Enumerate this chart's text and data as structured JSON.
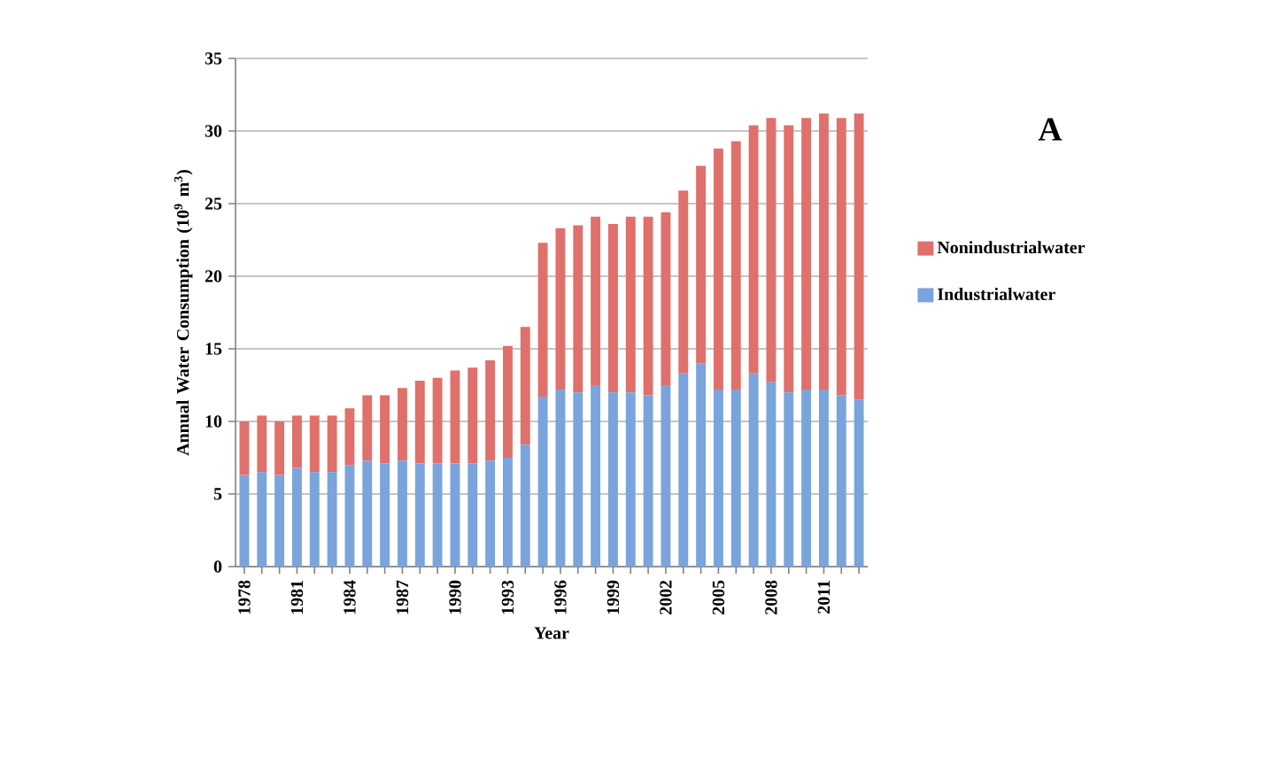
{
  "chart_data": {
    "type": "bar",
    "stacked": true,
    "xlabel": "Year",
    "ylabel": "Annual Water Consumption (10$^{9}$ m$^{3}$)",
    "annotations": [
      "A"
    ],
    "categories": [
      "1978",
      null,
      null,
      "1981",
      null,
      null,
      "1984",
      null,
      null,
      "1987",
      null,
      null,
      "1990",
      null,
      null,
      "1993",
      null,
      null,
      "1996",
      null,
      null,
      "1999",
      null,
      null,
      "2002",
      null,
      null,
      "2005",
      null,
      null,
      "2008",
      null,
      null,
      "2011",
      null,
      null
    ],
    "series": [
      {
        "name": "Industrialwater",
        "color": "#7aa4dc",
        "values": [
          6.3,
          6.5,
          6.3,
          6.8,
          6.5,
          6.5,
          7.0,
          7.3,
          7.1,
          7.3,
          7.1,
          7.1,
          7.1,
          7.1,
          7.3,
          7.5,
          8.4,
          11.7,
          12.2,
          12.0,
          12.5,
          12.0,
          12.0,
          11.8,
          12.5,
          13.3,
          14.0,
          12.2,
          12.2,
          13.3,
          12.7,
          12.0,
          12.2,
          12.2,
          11.8,
          11.5
        ]
      },
      {
        "name": "Nonindustrialwater",
        "color": "#e0706b",
        "values": [
          3.7,
          3.9,
          3.7,
          3.6,
          3.9,
          3.9,
          3.9,
          4.5,
          4.7,
          5.0,
          5.7,
          5.9,
          6.4,
          6.6,
          6.9,
          7.7,
          8.1,
          10.6,
          11.1,
          11.5,
          11.6,
          11.6,
          12.1,
          12.3,
          11.9,
          12.6,
          13.6,
          16.6,
          17.1,
          17.1,
          18.2,
          18.4,
          18.7,
          19.0,
          19.1,
          19.7
        ]
      }
    ],
    "ylim": [
      0,
      35
    ],
    "yticks": [
      0,
      5,
      10,
      15,
      20,
      25,
      30,
      35
    ],
    "grid": "y",
    "legend": "right"
  }
}
